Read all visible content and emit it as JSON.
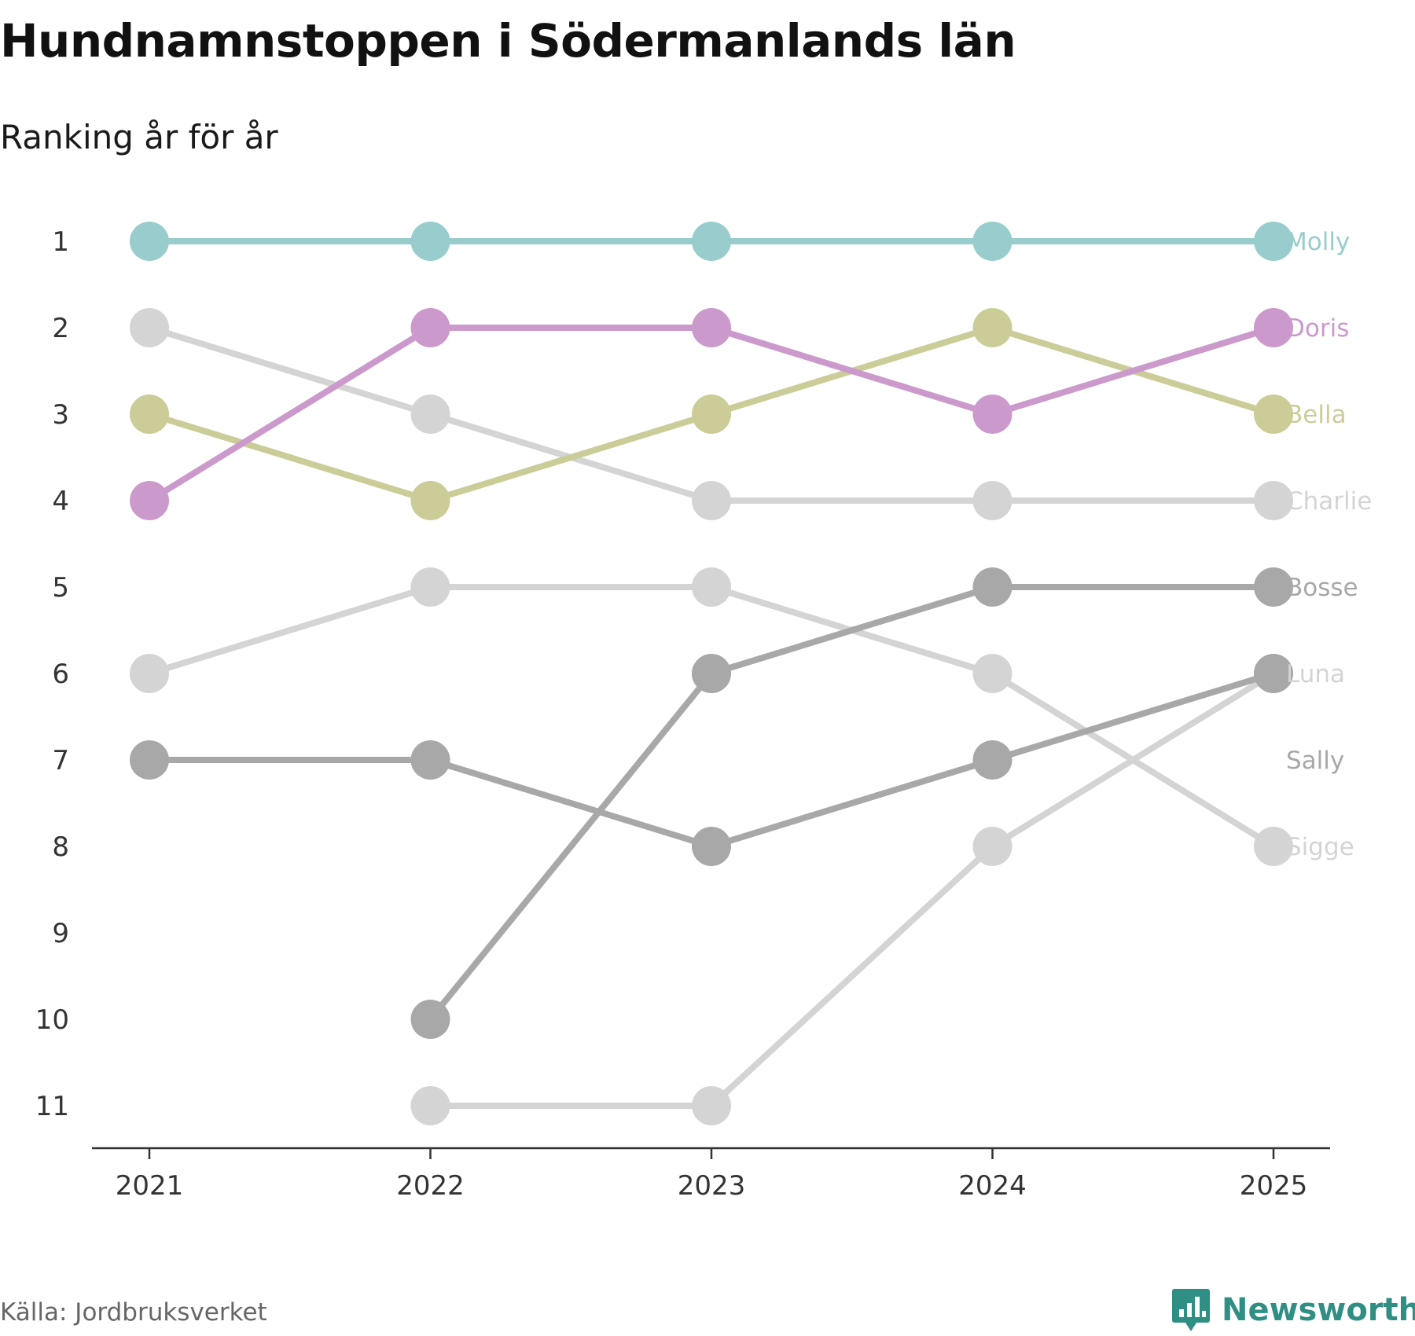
{
  "header": {
    "title": "Hundnamnstoppen i Södermanlands län",
    "subtitle": "Ranking år för år"
  },
  "footer": {
    "source": "Källa: Jordbruksverket",
    "brand": "Newsworthy",
    "brand_icon": "chart-speech-bubble-icon"
  },
  "colors": {
    "axis": "#333333",
    "tick_text": "#333333",
    "brand": "#2f8f84"
  },
  "chart_data": {
    "type": "line",
    "title": "Hundnamnstoppen i Södermanlands län",
    "subtitle": "Ranking år för år",
    "xlabel": "",
    "ylabel": "",
    "x": [
      "2021",
      "2022",
      "2023",
      "2024",
      "2025"
    ],
    "y_ticks": [
      "1",
      "2",
      "3",
      "4",
      "5",
      "6",
      "7",
      "8",
      "9",
      "10",
      "11"
    ],
    "ylim": [
      1,
      11
    ],
    "y_inverted": true,
    "grid": false,
    "series": [
      {
        "name": "Charlie",
        "color": "#d4d4d4",
        "values": [
          2,
          3,
          4,
          4,
          4
        ],
        "label_rank": 4
      },
      {
        "name": "Luna",
        "color": "#d4d4d4",
        "values": [
          6,
          5,
          5,
          6,
          8
        ],
        "label_rank": 6
      },
      {
        "name": "Sigge",
        "color": "#d4d4d4",
        "values": [
          null,
          11,
          11,
          8,
          6
        ],
        "label_rank": 8
      },
      {
        "name": "Bosse",
        "color": "#a8a8a8",
        "values": [
          null,
          10,
          6,
          5,
          5
        ],
        "label_rank": 5
      },
      {
        "name": "Sally",
        "color": "#a8a8a8",
        "values": [
          7,
          7,
          8,
          7,
          6
        ],
        "label_rank": 7
      },
      {
        "name": "Bella",
        "color": "#cccc99",
        "values": [
          3,
          4,
          3,
          2,
          3
        ],
        "label_rank": 3
      },
      {
        "name": "Doris",
        "color": "#cc99cc",
        "values": [
          4,
          2,
          2,
          3,
          2
        ],
        "label_rank": 2
      },
      {
        "name": "Molly",
        "color": "#99cccc",
        "values": [
          1,
          1,
          1,
          1,
          1
        ],
        "label_rank": 1
      }
    ]
  }
}
